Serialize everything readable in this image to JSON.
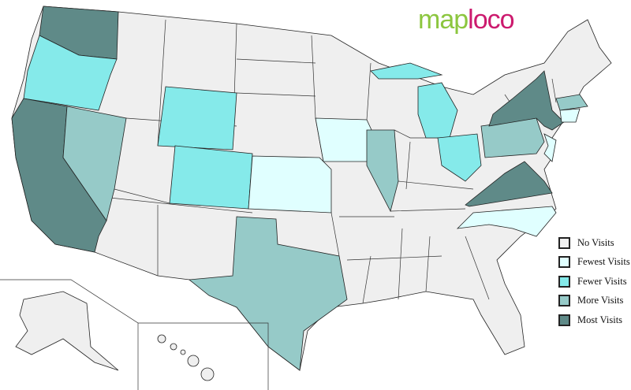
{
  "logo": {
    "part1": "map",
    "part2": "loco"
  },
  "colors": {
    "none": "#efefef",
    "fewest": "#e0ffff",
    "fewer": "#85eaea",
    "more": "#96cac8",
    "most": "#5f8a88"
  },
  "legend": [
    {
      "key": "none",
      "label": "No Visits"
    },
    {
      "key": "fewest",
      "label": "Fewest Visits"
    },
    {
      "key": "fewer",
      "label": "Fewer Visits"
    },
    {
      "key": "more",
      "label": "More Visits"
    },
    {
      "key": "most",
      "label": "Most Visits"
    }
  ],
  "states": {
    "washington": "most",
    "oregon": "fewer",
    "california": "most",
    "nevada": "more",
    "wyoming": "fewer",
    "colorado": "fewer",
    "kansas": "fewest",
    "iowa": "fewest",
    "illinois": "more",
    "michigan": "fewer",
    "ohio": "fewer",
    "pennsylvania": "more",
    "new-york": "most",
    "massachusetts": "more",
    "connecticut": "fewest",
    "new-jersey": "fewest",
    "virginia": "most",
    "north-carolina": "fewest",
    "texas": "more",
    "alaska": "none",
    "hawaii": "none"
  }
}
